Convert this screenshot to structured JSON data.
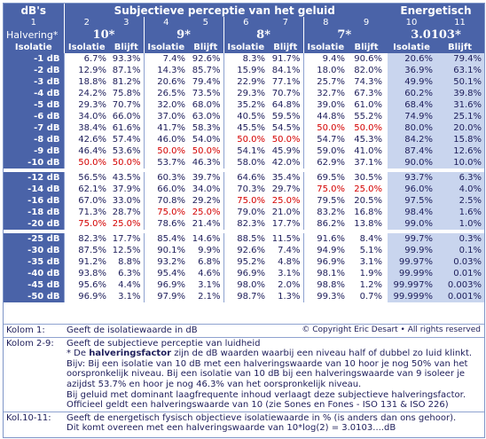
{
  "header": {
    "dbs": "dB's",
    "subjective_title": "Subjectieve perceptie van het geluid",
    "energetic_title": "Energetisch",
    "col_numbers": [
      "1",
      "2",
      "3",
      "4",
      "5",
      "6",
      "7",
      "8",
      "9",
      "10",
      "11"
    ],
    "halvering_label": "Halvering*",
    "halvering_values": [
      "10*",
      "9*",
      "8*",
      "7*"
    ],
    "energetic_value": "3.0103*",
    "isolatie": "Isolatie",
    "blijft": "Blijft"
  },
  "rows": [
    {
      "label": "-1 dB",
      "c": [
        "6.7%",
        "93.3%",
        "7.4%",
        "92.6%",
        "8.3%",
        "91.7%",
        "9.4%",
        "90.6%"
      ],
      "e": [
        "20.6%",
        "79.4%"
      ]
    },
    {
      "label": "-2 dB",
      "c": [
        "12.9%",
        "87.1%",
        "14.3%",
        "85.7%",
        "15.9%",
        "84.1%",
        "18.0%",
        "82.0%"
      ],
      "e": [
        "36.9%",
        "63.1%"
      ]
    },
    {
      "label": "-3 dB",
      "c": [
        "18.8%",
        "81.2%",
        "20.6%",
        "79.4%",
        "22.9%",
        "77.1%",
        "25.7%",
        "74.3%"
      ],
      "e": [
        "49.9%",
        "50.1%"
      ]
    },
    {
      "label": "-4 dB",
      "c": [
        "24.2%",
        "75.8%",
        "26.5%",
        "73.5%",
        "29.3%",
        "70.7%",
        "32.7%",
        "67.3%"
      ],
      "e": [
        "60.2%",
        "39.8%"
      ]
    },
    {
      "label": "-5 dB",
      "c": [
        "29.3%",
        "70.7%",
        "32.0%",
        "68.0%",
        "35.2%",
        "64.8%",
        "39.0%",
        "61.0%"
      ],
      "e": [
        "68.4%",
        "31.6%"
      ]
    },
    {
      "label": "-6 dB",
      "c": [
        "34.0%",
        "66.0%",
        "37.0%",
        "63.0%",
        "40.5%",
        "59.5%",
        "44.8%",
        "55.2%"
      ],
      "e": [
        "74.9%",
        "25.1%"
      ]
    },
    {
      "label": "-7 dB",
      "c": [
        "38.4%",
        "61.6%",
        "41.7%",
        "58.3%",
        "45.5%",
        "54.5%",
        "50.0%",
        "50.0%"
      ],
      "e": [
        "80.0%",
        "20.0%"
      ],
      "red": [
        6,
        7
      ]
    },
    {
      "label": "-8 dB",
      "c": [
        "42.6%",
        "57.4%",
        "46.0%",
        "54.0%",
        "50.0%",
        "50.0%",
        "54.7%",
        "45.3%"
      ],
      "e": [
        "84.2%",
        "15.8%"
      ],
      "red": [
        4,
        5
      ]
    },
    {
      "label": "-9 dB",
      "c": [
        "46.4%",
        "53.6%",
        "50.0%",
        "50.0%",
        "54.1%",
        "45.9%",
        "59.0%",
        "41.0%"
      ],
      "e": [
        "87.4%",
        "12.6%"
      ],
      "red": [
        2,
        3
      ]
    },
    {
      "label": "-10 dB",
      "c": [
        "50.0%",
        "50.0%",
        "53.7%",
        "46.3%",
        "58.0%",
        "42.0%",
        "62.9%",
        "37.1%"
      ],
      "e": [
        "90.0%",
        "10.0%"
      ],
      "red": [
        0,
        1
      ]
    },
    {
      "label": "-12 dB",
      "c": [
        "56.5%",
        "43.5%",
        "60.3%",
        "39.7%",
        "64.6%",
        "35.4%",
        "69.5%",
        "30.5%"
      ],
      "e": [
        "93.7%",
        "6.3%"
      ]
    },
    {
      "label": "-14 dB",
      "c": [
        "62.1%",
        "37.9%",
        "66.0%",
        "34.0%",
        "70.3%",
        "29.7%",
        "75.0%",
        "25.0%"
      ],
      "e": [
        "96.0%",
        "4.0%"
      ],
      "red": [
        6,
        7
      ]
    },
    {
      "label": "-16 dB",
      "c": [
        "67.0%",
        "33.0%",
        "70.8%",
        "29.2%",
        "75.0%",
        "25.0%",
        "79.5%",
        "20.5%"
      ],
      "e": [
        "97.5%",
        "2.5%"
      ],
      "red": [
        4,
        5
      ]
    },
    {
      "label": "-18 dB",
      "c": [
        "71.3%",
        "28.7%",
        "75.0%",
        "25.0%",
        "79.0%",
        "21.0%",
        "83.2%",
        "16.8%"
      ],
      "e": [
        "98.4%",
        "1.6%"
      ],
      "red": [
        2,
        3
      ]
    },
    {
      "label": "-20 dB",
      "c": [
        "75.0%",
        "25.0%",
        "78.6%",
        "21.4%",
        "82.3%",
        "17.7%",
        "86.2%",
        "13.8%"
      ],
      "e": [
        "99.0%",
        "1.0%"
      ],
      "red": [
        0,
        1
      ]
    },
    {
      "label": "-25 dB",
      "c": [
        "82.3%",
        "17.7%",
        "85.4%",
        "14.6%",
        "88.5%",
        "11.5%",
        "91.6%",
        "8.4%"
      ],
      "e": [
        "99.7%",
        "0.3%"
      ]
    },
    {
      "label": "-30 dB",
      "c": [
        "87.5%",
        "12.5%",
        "90.1%",
        "9.9%",
        "92.6%",
        "7.4%",
        "94.9%",
        "5.1%"
      ],
      "e": [
        "99.9%",
        "0.1%"
      ]
    },
    {
      "label": "-35 dB",
      "c": [
        "91.2%",
        "8.8%",
        "93.2%",
        "6.8%",
        "95.2%",
        "4.8%",
        "96.9%",
        "3.1%"
      ],
      "e": [
        "99.97%",
        "0.03%"
      ],
      "small": true
    },
    {
      "label": "-40 dB",
      "c": [
        "93.8%",
        "6.3%",
        "95.4%",
        "4.6%",
        "96.9%",
        "3.1%",
        "98.1%",
        "1.9%"
      ],
      "e": [
        "99.99%",
        "0.01%"
      ],
      "small": true
    },
    {
      "label": "-45 dB",
      "c": [
        "95.6%",
        "4.4%",
        "96.9%",
        "3.1%",
        "98.0%",
        "2.0%",
        "98.8%",
        "1.2%"
      ],
      "e": [
        "99.997%",
        "0.003%"
      ],
      "small": true
    },
    {
      "label": "-50 dB",
      "c": [
        "96.9%",
        "3.1%",
        "97.9%",
        "2.1%",
        "98.7%",
        "1.3%",
        "99.3%",
        "0.7%"
      ],
      "e": [
        "99.999%",
        "0.001%"
      ],
      "small": true
    }
  ],
  "notes": {
    "k1_label": "Kolom 1:",
    "k1_text": "Geeft de isolatiewaarde in dB",
    "copyright": "© Copyright Eric Desart • All rights reserved",
    "k29_label": "Kolom 2-9:",
    "k29_line1": "Geeft de subjectieve perceptie van luidheid",
    "k29_line2_pre": "* De ",
    "k29_line2_bold": "halveringsfactor",
    "k29_line2_post": " zijn de dB waarden waarbij een niveau half of dubbel zo luid klinkt.",
    "k29_line3": "Bijv: Bij een isolatie van 10 dB met een halveringswaarde van 10 hoor je nog 50% van het",
    "k29_line4": "oorspronkelijk niveau. Bij een isolatie van 10 dB bij een halveringswaarde van 9 isoleer je",
    "k29_line5": "azijdst 53.7% en hoor je nog 46.3% van het oorspronkelijk niveau.",
    "k29_line6": "Bij geluid met dominant laagfrequente inhoud verlaagt deze subjectieve halveringsfactor.",
    "k29_line7": "Officieel geldt een halveringswaarde van 10 (zie Sones en Fones - ISO 131 & ISO 226)",
    "k1011_label": "Kol.10-11:",
    "k1011_line1": "Geeft de energetisch fysisch objectieve isolatiewaarde in % (is anders dan ons gehoor).",
    "k1011_line2": "Dit komt overeen met een halveringswaarde van 10*log(2) = 3.0103....dB"
  },
  "colors": {
    "header_bg": "#4a63a8",
    "energetic_bg": "#c9d5ee",
    "highlight": "#d40000",
    "text": "#1d1d5a"
  }
}
